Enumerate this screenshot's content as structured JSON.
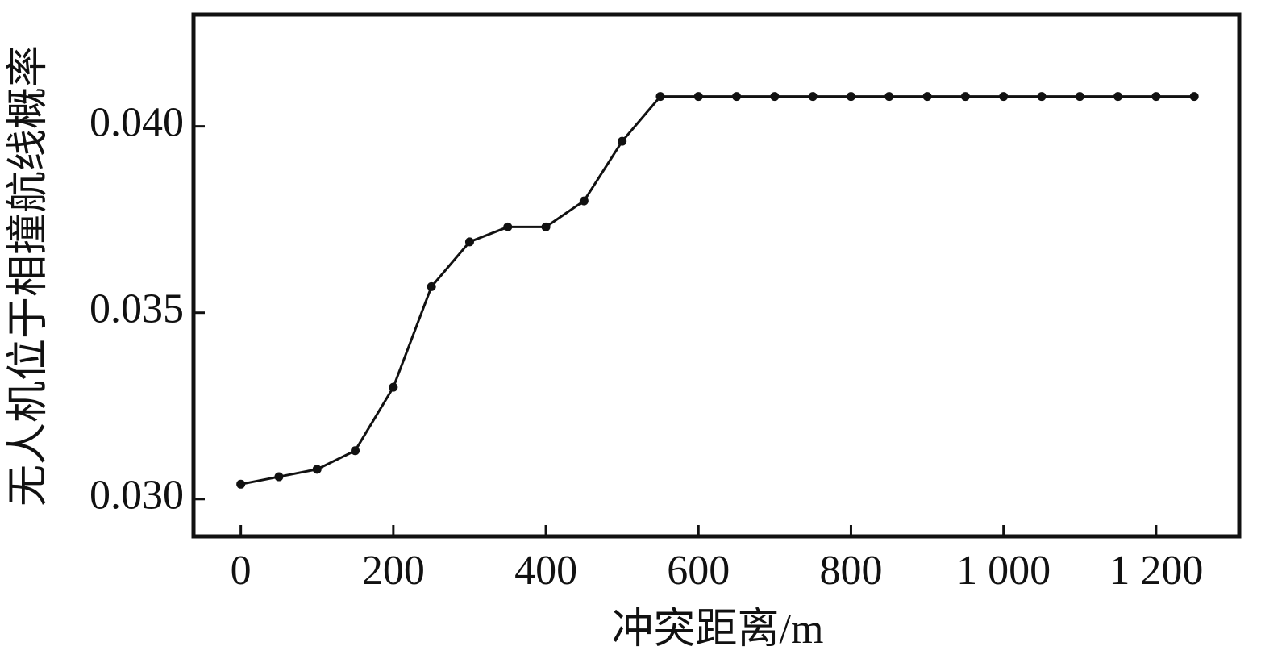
{
  "chart_data": {
    "type": "line",
    "x_label": "冲突距离/m",
    "y_label": "无人机位于相撞航线概率",
    "x": [
      0,
      50,
      100,
      150,
      200,
      250,
      300,
      350,
      400,
      450,
      500,
      550,
      600,
      650,
      700,
      750,
      800,
      850,
      900,
      950,
      1000,
      1050,
      1100,
      1150,
      1200,
      1250
    ],
    "series": [
      {
        "color": "#111111",
        "values": [
          0.0304,
          0.0306,
          0.0308,
          0.0313,
          0.033,
          0.0357,
          0.0369,
          0.0373,
          0.0373,
          0.038,
          0.0396,
          0.0408,
          0.0408,
          0.0408,
          0.0408,
          0.0408,
          0.0408,
          0.0408,
          0.0408,
          0.0408,
          0.0408,
          0.0408,
          0.0408,
          0.0408,
          0.0408,
          0.0408
        ]
      }
    ],
    "xlim": [
      -62,
      1309
    ],
    "ylim": [
      0.029,
      0.043
    ],
    "xticks": [
      0,
      200,
      400,
      600,
      800,
      {
        "value": 1000,
        "label": "1 000"
      },
      {
        "value": 1200,
        "label": "1 200"
      }
    ],
    "yticks": [
      {
        "value": 0.03,
        "label": "0.030"
      },
      0.035,
      {
        "value": 0.04,
        "label": "0.040"
      }
    ],
    "grid": false
  }
}
